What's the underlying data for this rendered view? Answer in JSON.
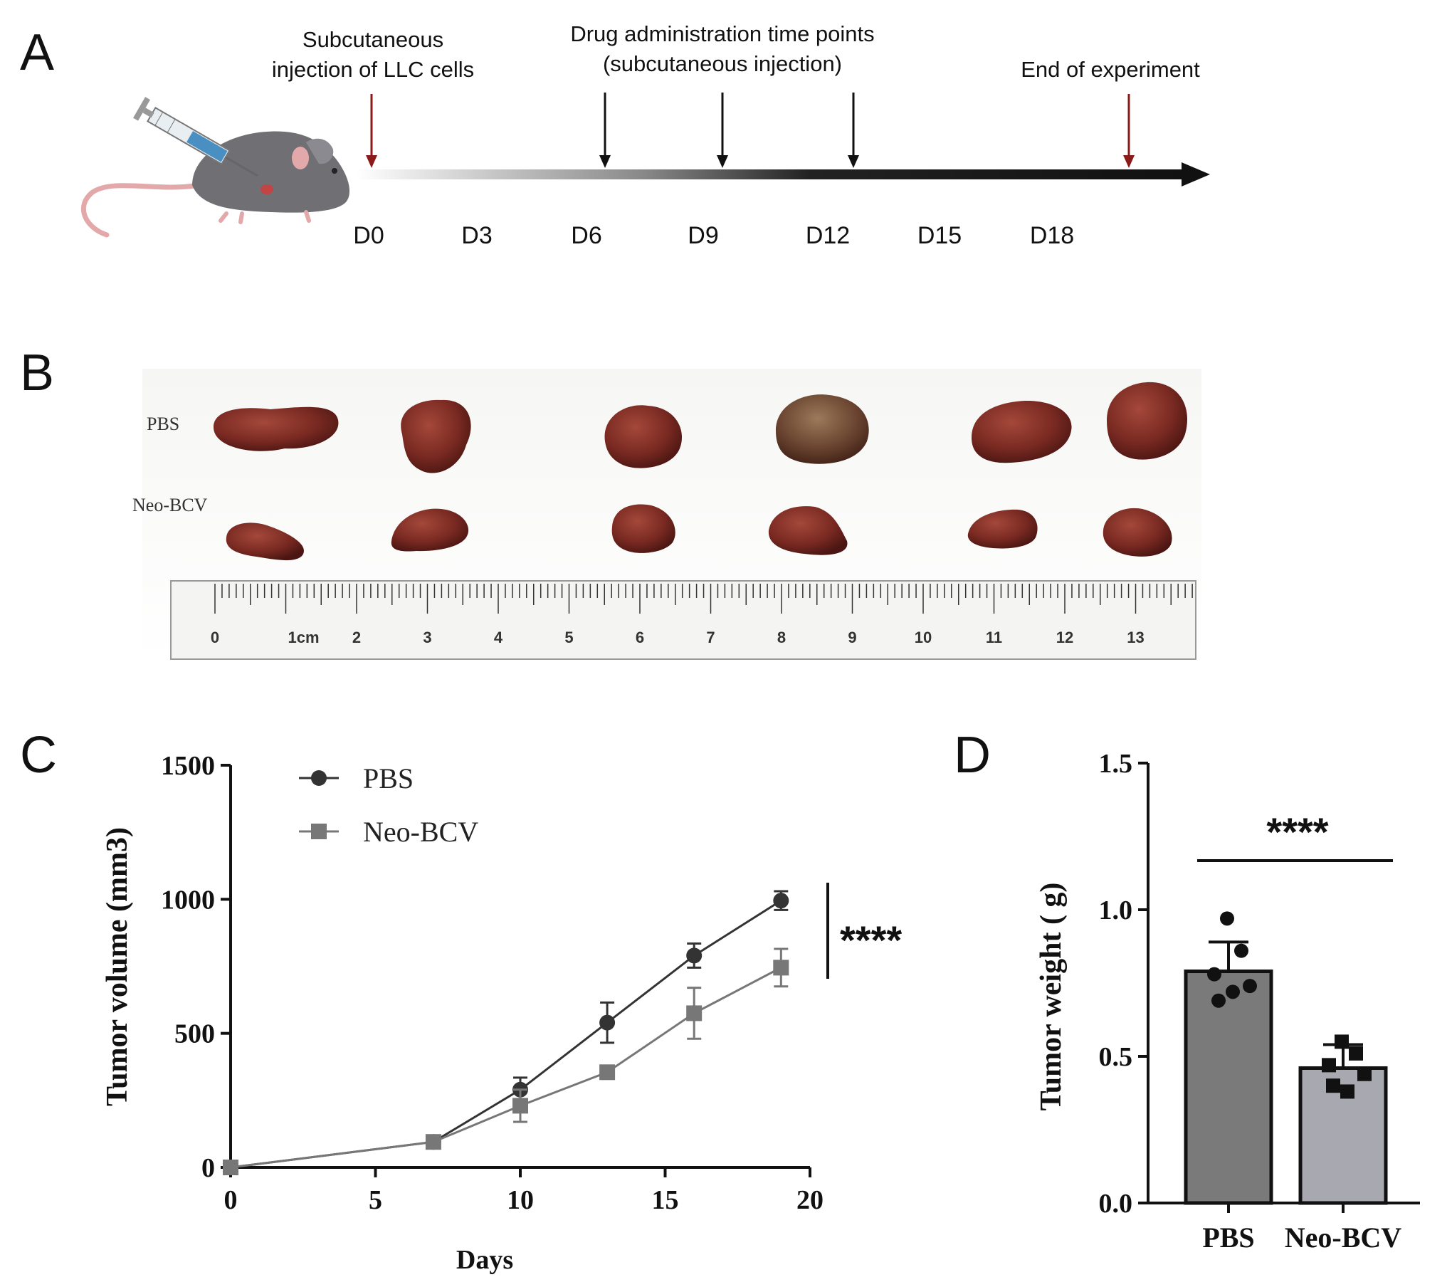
{
  "panel_a": {
    "letter": "A",
    "labels": {
      "injection_line1": "Subcutaneous",
      "injection_line2": "injection of LLC cells",
      "drug_line1": "Drug administration time points",
      "drug_line2": "(subcutaneous injection)",
      "end": "End of experiment"
    },
    "days": [
      "D0",
      "D3",
      "D6",
      "D9",
      "D12",
      "D15",
      "D18"
    ],
    "colors": {
      "red_arrow": "#8b1a1a",
      "black_arrow": "#111111"
    }
  },
  "panel_b": {
    "letter": "B",
    "row_labels": {
      "pbs": "PBS",
      "neo": "Neo-BCV"
    },
    "ruler_numbers": [
      "0",
      "1cm",
      "2",
      "3",
      "4",
      "5",
      "6",
      "7",
      "8",
      "9",
      "10",
      "11",
      "12",
      "13"
    ],
    "colors": {
      "tumor": "#7a2a22",
      "tumor_dark": "#4a1512",
      "tumor_light": "#a4483a"
    }
  },
  "chart_data": [
    {
      "panel": "C",
      "type": "line",
      "ylabel": "Tumor volume (mm3)",
      "xlabel": "Days",
      "xlim": [
        0,
        20
      ],
      "ylim": [
        0,
        1500
      ],
      "xticks": [
        0,
        5,
        10,
        15,
        20
      ],
      "yticks": [
        0,
        500,
        1000,
        1500
      ],
      "x": [
        0,
        7,
        10,
        13,
        16,
        19
      ],
      "series": [
        {
          "name": "PBS",
          "marker": "circle",
          "color": "#333333",
          "values": [
            0,
            95,
            290,
            540,
            790,
            995
          ],
          "errors": [
            0,
            5,
            45,
            75,
            45,
            35
          ]
        },
        {
          "name": "Neo-BCV",
          "marker": "square",
          "color": "#777777",
          "values": [
            0,
            95,
            230,
            355,
            575,
            745
          ],
          "errors": [
            0,
            5,
            60,
            15,
            95,
            70
          ]
        }
      ],
      "significance": "****",
      "legend": "top-left"
    },
    {
      "panel": "D",
      "type": "bar",
      "ylabel": "Tumor weight ( g)",
      "categories": [
        "PBS",
        "Neo-BCV"
      ],
      "values": [
        0.79,
        0.46
      ],
      "errors": [
        0.1,
        0.08
      ],
      "ylim": [
        0,
        1.5
      ],
      "yticks": [
        "0.0",
        "0.5",
        "1.0",
        "1.5"
      ],
      "points": [
        [
          0.97,
          0.86,
          0.78,
          0.74,
          0.69,
          0.72
        ],
        [
          0.55,
          0.51,
          0.47,
          0.44,
          0.4,
          0.38
        ]
      ],
      "bar_colors": [
        "#7a7a7a",
        "#a8a8b0"
      ],
      "significance": "****"
    }
  ],
  "panel_c": {
    "letter": "C"
  },
  "panel_d": {
    "letter": "D"
  }
}
